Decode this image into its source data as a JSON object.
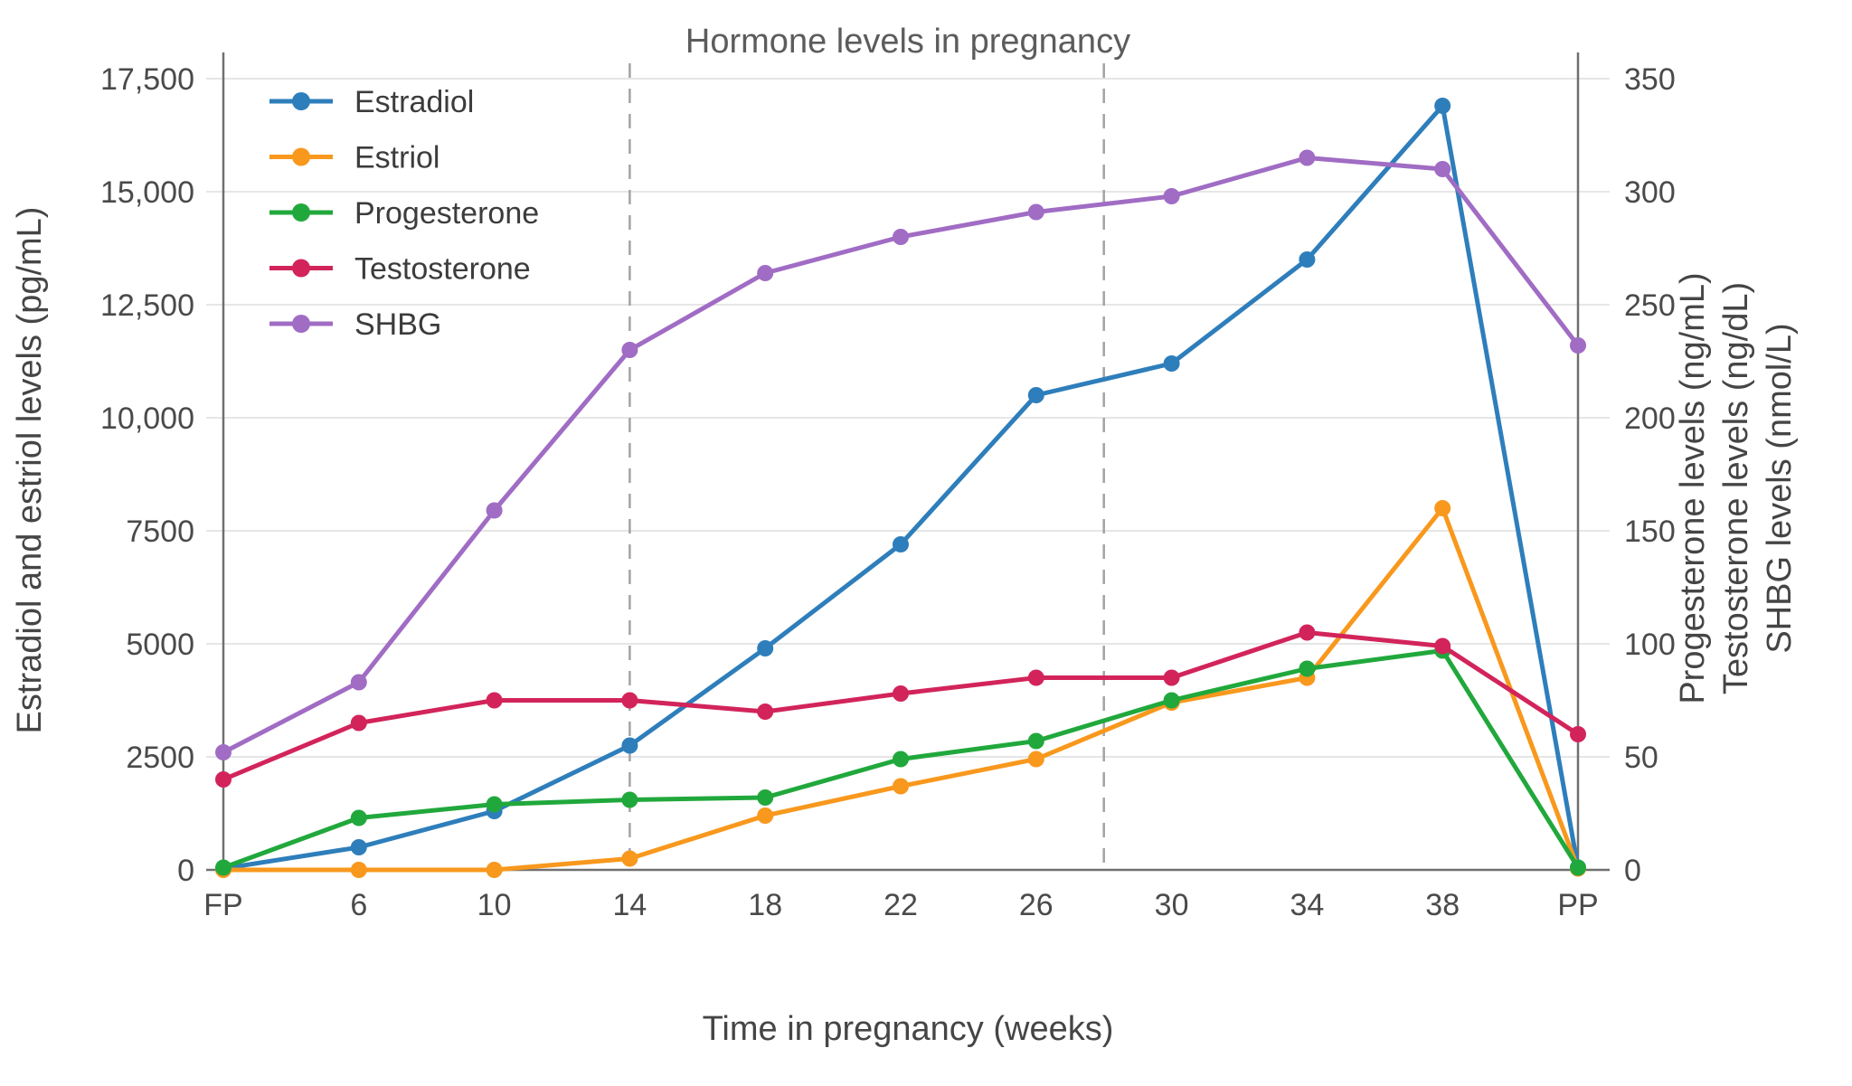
{
  "chart_data": {
    "type": "line",
    "title": "Hormone levels in pregnancy",
    "xlabel": "Time in pregnancy (weeks)",
    "categories": [
      "FP",
      "6",
      "10",
      "14",
      "18",
      "22",
      "26",
      "30",
      "34",
      "38",
      "PP"
    ],
    "grid": true,
    "legend_position": "top-left",
    "left_axis": {
      "label": "Estradiol and estriol levels (pg/mL)",
      "tick_labels": [
        "0",
        "2500",
        "5000",
        "7500",
        "10,000",
        "12,500",
        "15,000",
        "17,500"
      ],
      "tick_values": [
        0,
        2500,
        5000,
        7500,
        10000,
        12500,
        15000,
        17500
      ],
      "min": 0,
      "max": 17500
    },
    "right_axis": {
      "labels": [
        "Progesterone levels (ng/mL)",
        "Testosterone levels (ng/dL)",
        "SHBG levels (nmol/L)"
      ],
      "tick_labels": [
        "0",
        "50",
        "100",
        "150",
        "200",
        "250",
        "300",
        "350"
      ],
      "tick_values": [
        0,
        50,
        100,
        150,
        200,
        250,
        300,
        350
      ],
      "min": 0,
      "max": 350
    },
    "annotations": {
      "dashed_vlines_at_weeks": [
        14,
        28
      ],
      "solid_vlines_at_categories": [
        "FP",
        "PP"
      ]
    },
    "colors": {
      "grid": "#e6e6e6",
      "axis": "#707070",
      "dashed_line": "#a3a3a3"
    },
    "series": [
      {
        "name": "Estradiol",
        "axis": "left",
        "color": "#2e7ebb",
        "values": [
          30,
          500,
          1300,
          2750,
          4900,
          7200,
          10500,
          11200,
          13500,
          16900,
          50
        ]
      },
      {
        "name": "Estriol",
        "axis": "left",
        "color": "#f8981d",
        "values": [
          0,
          0,
          0,
          250,
          1200,
          1850,
          2450,
          3700,
          4250,
          8000,
          30
        ]
      },
      {
        "name": "Progesterone",
        "axis": "right",
        "color": "#21a83c",
        "values": [
          1,
          23,
          29,
          31,
          32,
          49,
          57,
          75,
          89,
          97,
          1
        ]
      },
      {
        "name": "Testosterone",
        "axis": "right",
        "color": "#d2245b",
        "values": [
          40,
          65,
          75,
          75,
          70,
          78,
          85,
          85,
          105,
          99,
          60
        ]
      },
      {
        "name": "SHBG",
        "axis": "right",
        "color": "#a06cc4",
        "values": [
          52,
          83,
          159,
          230,
          264,
          280,
          291,
          298,
          315,
          310,
          232
        ]
      }
    ]
  }
}
